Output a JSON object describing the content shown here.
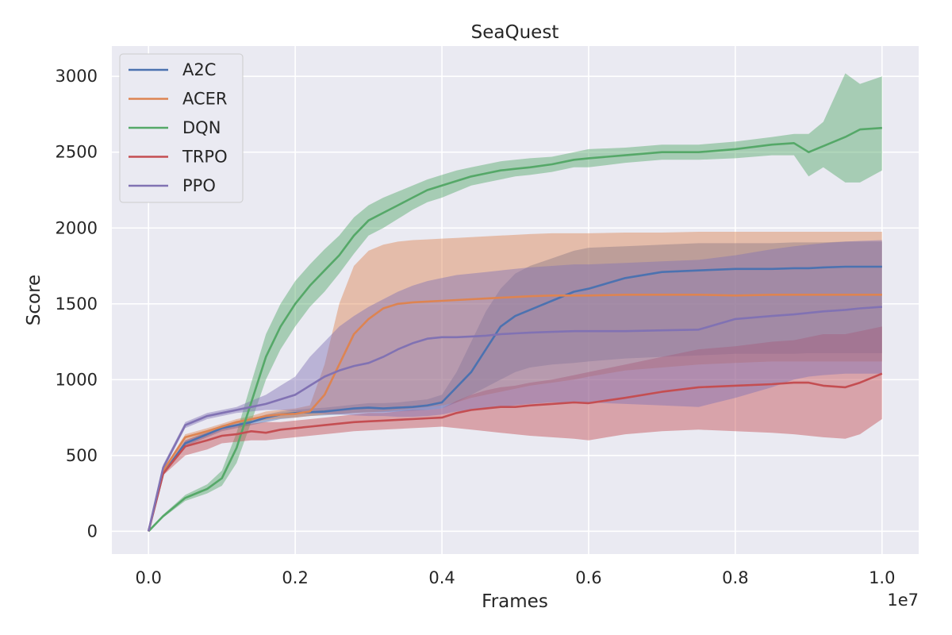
{
  "chart_data": {
    "type": "line",
    "title": "SeaQuest",
    "xlabel": "Frames",
    "ylabel": "Score",
    "x_offset_label": "1e7",
    "xlim": [
      -0.05,
      1.05
    ],
    "ylim": [
      -150,
      3200
    ],
    "x_ticks": [
      0.0,
      0.2,
      0.4,
      0.6,
      0.8,
      1.0
    ],
    "x_tick_labels": [
      "0.0",
      "0.2",
      "0.4",
      "0.6",
      "0.8",
      "1.0"
    ],
    "y_ticks": [
      0,
      500,
      1000,
      1500,
      2000,
      2500,
      3000
    ],
    "y_tick_labels": [
      "0",
      "500",
      "1000",
      "1500",
      "2000",
      "2500",
      "3000"
    ],
    "grid": true,
    "legend_position": "top-left",
    "x": [
      0.0,
      0.02,
      0.05,
      0.08,
      0.1,
      0.12,
      0.14,
      0.16,
      0.18,
      0.2,
      0.22,
      0.24,
      0.26,
      0.28,
      0.3,
      0.32,
      0.34,
      0.36,
      0.38,
      0.4,
      0.42,
      0.44,
      0.46,
      0.48,
      0.5,
      0.52,
      0.55,
      0.58,
      0.6,
      0.65,
      0.7,
      0.75,
      0.8,
      0.85,
      0.88,
      0.9,
      0.92,
      0.95,
      0.97,
      1.0
    ],
    "series": [
      {
        "name": "A2C",
        "color": "#4c72b0",
        "values": [
          0,
          380,
          580,
          640,
          680,
          700,
          720,
          750,
          770,
          780,
          785,
          790,
          800,
          810,
          815,
          810,
          815,
          820,
          830,
          850,
          950,
          1050,
          1200,
          1350,
          1420,
          1460,
          1520,
          1580,
          1600,
          1670,
          1710,
          1720,
          1730,
          1730,
          1735,
          1735,
          1740,
          1745,
          1745,
          1745
        ],
        "lower": [
          0,
          370,
          560,
          620,
          660,
          680,
          700,
          720,
          740,
          750,
          760,
          765,
          770,
          780,
          785,
          785,
          790,
          795,
          800,
          810,
          850,
          900,
          950,
          1000,
          1050,
          1080,
          1100,
          1110,
          1120,
          1140,
          1150,
          1160,
          1170,
          1170,
          1170,
          1175,
          1175,
          1175,
          1175,
          1175
        ],
        "upper": [
          0,
          390,
          600,
          660,
          700,
          720,
          740,
          770,
          790,
          800,
          810,
          815,
          825,
          835,
          845,
          845,
          850,
          860,
          870,
          900,
          1050,
          1250,
          1450,
          1600,
          1700,
          1750,
          1800,
          1850,
          1870,
          1880,
          1890,
          1900,
          1900,
          1900,
          1905,
          1905,
          1905,
          1910,
          1910,
          1910
        ]
      },
      {
        "name": "ACER",
        "color": "#dd8452",
        "values": [
          0,
          400,
          620,
          660,
          690,
          720,
          740,
          760,
          770,
          775,
          790,
          900,
          1100,
          1300,
          1400,
          1470,
          1500,
          1510,
          1515,
          1520,
          1525,
          1530,
          1535,
          1540,
          1545,
          1550,
          1555,
          1555,
          1555,
          1560,
          1560,
          1560,
          1555,
          1560,
          1560,
          1560,
          1560,
          1560,
          1560,
          1560
        ],
        "lower": [
          0,
          390,
          600,
          640,
          670,
          700,
          720,
          735,
          745,
          750,
          760,
          770,
          775,
          780,
          785,
          790,
          800,
          810,
          820,
          830,
          850,
          880,
          900,
          920,
          940,
          960,
          980,
          1000,
          1020,
          1060,
          1080,
          1100,
          1110,
          1120,
          1120,
          1120,
          1120,
          1120,
          1120,
          1120
        ],
        "upper": [
          0,
          410,
          640,
          680,
          710,
          740,
          760,
          790,
          800,
          810,
          830,
          1100,
          1500,
          1750,
          1850,
          1890,
          1910,
          1920,
          1925,
          1930,
          1935,
          1940,
          1945,
          1950,
          1955,
          1960,
          1965,
          1965,
          1965,
          1970,
          1970,
          1975,
          1975,
          1975,
          1975,
          1975,
          1975,
          1975,
          1975,
          1975
        ]
      },
      {
        "name": "DQN",
        "color": "#55a868",
        "values": [
          0,
          100,
          220,
          280,
          350,
          550,
          850,
          1150,
          1350,
          1500,
          1620,
          1720,
          1820,
          1950,
          2050,
          2100,
          2150,
          2200,
          2250,
          2280,
          2310,
          2340,
          2360,
          2380,
          2390,
          2400,
          2420,
          2450,
          2460,
          2480,
          2500,
          2500,
          2520,
          2550,
          2560,
          2500,
          2540,
          2600,
          2650,
          2660
        ],
        "lower": [
          0,
          90,
          200,
          250,
          300,
          450,
          720,
          1000,
          1200,
          1350,
          1480,
          1580,
          1700,
          1830,
          1950,
          2000,
          2060,
          2120,
          2170,
          2200,
          2240,
          2280,
          2300,
          2320,
          2340,
          2350,
          2370,
          2400,
          2400,
          2430,
          2450,
          2450,
          2460,
          2480,
          2480,
          2340,
          2400,
          2300,
          2300,
          2380
        ],
        "upper": [
          0,
          110,
          240,
          310,
          400,
          650,
          980,
          1300,
          1500,
          1650,
          1760,
          1860,
          1950,
          2070,
          2150,
          2200,
          2240,
          2280,
          2320,
          2350,
          2380,
          2400,
          2420,
          2440,
          2450,
          2460,
          2470,
          2500,
          2520,
          2530,
          2550,
          2550,
          2570,
          2600,
          2620,
          2620,
          2700,
          3020,
          2950,
          3000
        ]
      },
      {
        "name": "TRPO",
        "color": "#c44e52",
        "values": [
          0,
          380,
          560,
          600,
          630,
          640,
          660,
          650,
          670,
          680,
          690,
          700,
          710,
          720,
          725,
          730,
          735,
          740,
          745,
          750,
          780,
          800,
          810,
          820,
          820,
          830,
          840,
          850,
          845,
          880,
          920,
          950,
          960,
          970,
          980,
          980,
          960,
          950,
          980,
          1040
        ],
        "lower": [
          0,
          370,
          500,
          540,
          580,
          590,
          600,
          600,
          610,
          620,
          630,
          640,
          650,
          660,
          665,
          670,
          675,
          680,
          685,
          690,
          680,
          670,
          660,
          650,
          640,
          630,
          620,
          610,
          600,
          640,
          660,
          670,
          660,
          650,
          640,
          630,
          620,
          610,
          640,
          740
        ],
        "upper": [
          0,
          390,
          600,
          650,
          680,
          700,
          710,
          720,
          720,
          730,
          740,
          750,
          760,
          770,
          780,
          780,
          790,
          800,
          800,
          810,
          860,
          900,
          930,
          950,
          960,
          980,
          1000,
          1030,
          1050,
          1100,
          1150,
          1200,
          1220,
          1250,
          1260,
          1280,
          1300,
          1300,
          1320,
          1350
        ]
      },
      {
        "name": "PPO",
        "color": "#8172b3",
        "values": [
          0,
          420,
          700,
          760,
          780,
          800,
          820,
          840,
          870,
          900,
          960,
          1020,
          1060,
          1090,
          1110,
          1150,
          1200,
          1240,
          1270,
          1280,
          1280,
          1285,
          1290,
          1300,
          1305,
          1310,
          1315,
          1320,
          1320,
          1320,
          1325,
          1330,
          1400,
          1420,
          1430,
          1440,
          1450,
          1460,
          1470,
          1480
        ],
        "lower": [
          0,
          400,
          680,
          740,
          760,
          780,
          790,
          800,
          800,
          790,
          780,
          775,
          770,
          765,
          760,
          760,
          755,
          755,
          760,
          770,
          790,
          800,
          810,
          820,
          830,
          840,
          850,
          850,
          850,
          840,
          830,
          820,
          880,
          950,
          1000,
          1020,
          1030,
          1040,
          1040,
          1040
        ],
        "upper": [
          0,
          440,
          720,
          780,
          800,
          820,
          860,
          900,
          960,
          1020,
          1150,
          1250,
          1350,
          1420,
          1480,
          1530,
          1580,
          1620,
          1650,
          1670,
          1690,
          1700,
          1710,
          1720,
          1730,
          1740,
          1750,
          1760,
          1760,
          1770,
          1780,
          1790,
          1820,
          1860,
          1880,
          1890,
          1900,
          1910,
          1915,
          1920
        ]
      }
    ]
  }
}
